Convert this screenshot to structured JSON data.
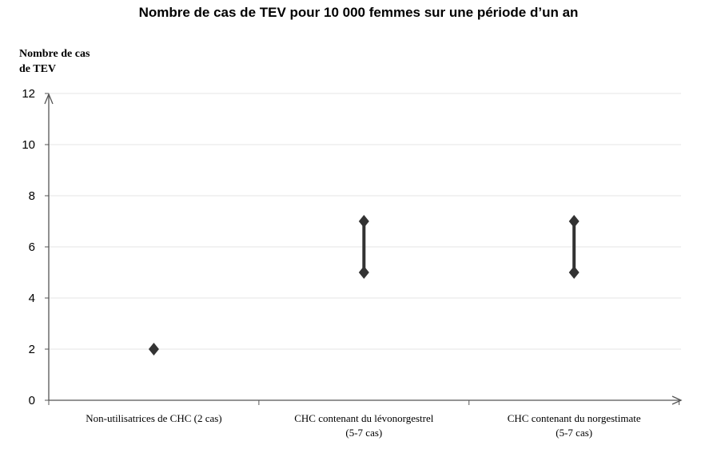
{
  "chart_data": {
    "type": "range",
    "title": "Nombre de cas de TEV pour 10 000 femmes sur une période d’un an",
    "ylabel_lines": [
      "Nombre de cas",
      "de TEV"
    ],
    "xlabel": "",
    "ylim": [
      0,
      12
    ],
    "yticks": [
      0,
      2,
      4,
      6,
      8,
      10,
      12
    ],
    "grid": true,
    "categories": [
      {
        "label_lines": [
          "Non-utilisatrices de CHC (2 cas)"
        ],
        "low": 2,
        "high": 2
      },
      {
        "label_lines": [
          "CHC contenant du lévonorgestrel",
          "(5-7 cas)"
        ],
        "low": 5,
        "high": 7
      },
      {
        "label_lines": [
          "CHC contenant du norgestimate",
          "(5-7 cas)"
        ],
        "low": 5,
        "high": 7
      }
    ],
    "colors": {
      "marker": "#333333",
      "axis": "#555555",
      "grid": "#e6e6e6"
    }
  }
}
